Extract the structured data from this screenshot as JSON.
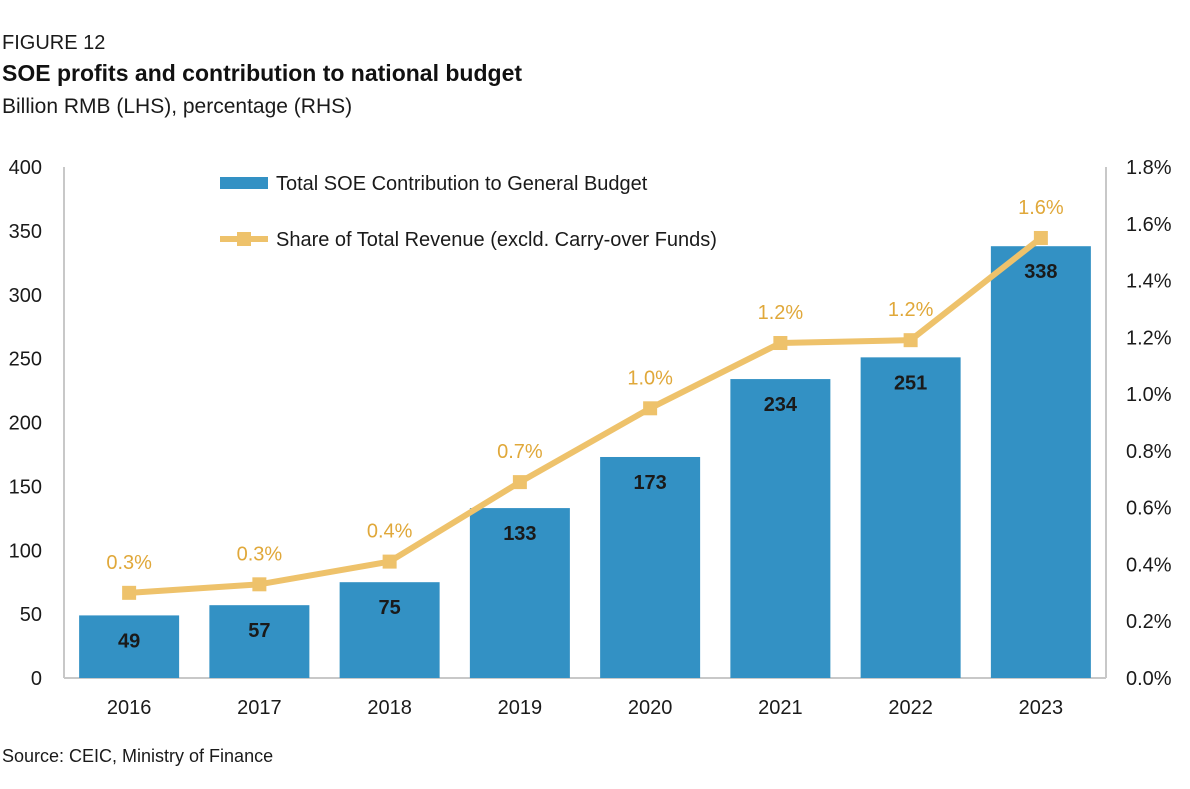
{
  "figure": {
    "label": "FIGURE 12",
    "title": "SOE profits and contribution to national budget",
    "subtitle": "Billion RMB (LHS), percentage (RHS)",
    "source": "Source: CEIC, Ministry of Finance"
  },
  "chart_data": {
    "type": "bar",
    "categories": [
      "2016",
      "2017",
      "2018",
      "2019",
      "2020",
      "2021",
      "2022",
      "2023"
    ],
    "series": [
      {
        "name": "Total SOE Contribution to General Budget",
        "kind": "bar",
        "axis": "left",
        "values": [
          49,
          57,
          75,
          133,
          173,
          234,
          251,
          338
        ],
        "labels": [
          "49",
          "57",
          "75",
          "133",
          "173",
          "234",
          "251",
          "338"
        ],
        "color": "#3391c4"
      },
      {
        "name": "Share of Total Revenue (excld. Carry-over Funds)",
        "kind": "line",
        "axis": "right",
        "values": [
          0.3,
          0.33,
          0.41,
          0.69,
          0.95,
          1.18,
          1.19,
          1.55
        ],
        "labels": [
          "0.3%",
          "0.3%",
          "0.4%",
          "0.7%",
          "1.0%",
          "1.2%",
          "1.2%",
          "1.6%"
        ],
        "color": "#eec26b"
      }
    ],
    "ylim_left": [
      0,
      400
    ],
    "yticks_left": [
      0,
      50,
      100,
      150,
      200,
      250,
      300,
      350,
      400
    ],
    "ytick_labels_left": [
      "0",
      "50",
      "100",
      "150",
      "200",
      "250",
      "300",
      "350",
      "400"
    ],
    "ylim_right": [
      0,
      1.8
    ],
    "yticks_right": [
      0,
      0.2,
      0.4,
      0.6,
      0.8,
      1.0,
      1.2,
      1.4,
      1.6,
      1.8
    ],
    "ytick_labels_right": [
      "0.0%",
      "0.2%",
      "0.4%",
      "0.6%",
      "0.8%",
      "1.0%",
      "1.2%",
      "1.4%",
      "1.6%",
      "1.8%"
    ],
    "grid": false,
    "legend_position": "top-left inside plot"
  }
}
